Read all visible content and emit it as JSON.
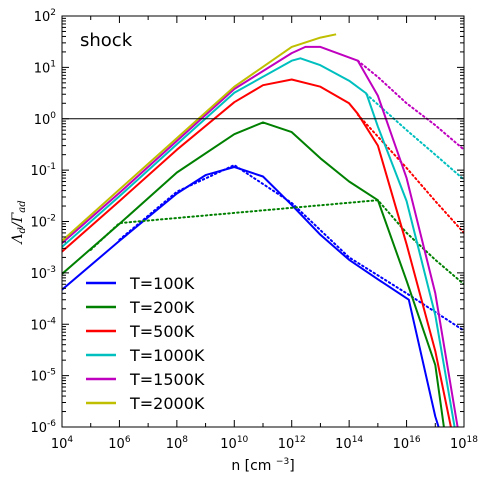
{
  "chart_data": {
    "type": "line",
    "x_scale": "log",
    "y_scale": "log",
    "xlim": [
      10000.0,
      1e+18
    ],
    "ylim": [
      1e-06,
      100
    ],
    "xlabel": {
      "text": "n [cm ",
      "sup": "−3",
      "tail": "]"
    },
    "ylabel": {
      "main": "Λ",
      "sub1": "d",
      "mid": "/Γ",
      "sub2": "ad"
    },
    "x_ticks": [
      {
        "base": "10",
        "exp": "4",
        "value": 10000.0
      },
      {
        "base": "10",
        "exp": "6",
        "value": 1000000.0
      },
      {
        "base": "10",
        "exp": "8",
        "value": 100000000.0
      },
      {
        "base": "10",
        "exp": "10",
        "value": 10000000000.0
      },
      {
        "base": "10",
        "exp": "12",
        "value": 1000000000000.0
      },
      {
        "base": "10",
        "exp": "14",
        "value": 100000000000000.0
      },
      {
        "base": "10",
        "exp": "16",
        "value": 1e+16
      },
      {
        "base": "10",
        "exp": "18",
        "value": 1e+18
      }
    ],
    "y_ticks": [
      {
        "base": "10",
        "exp": "-6",
        "value": 1e-06
      },
      {
        "base": "10",
        "exp": "-5",
        "value": 1e-05
      },
      {
        "base": "10",
        "exp": "-4",
        "value": 0.0001
      },
      {
        "base": "10",
        "exp": "-3",
        "value": 0.001
      },
      {
        "base": "10",
        "exp": "-2",
        "value": 0.01
      },
      {
        "base": "10",
        "exp": "-1",
        "value": 0.1
      },
      {
        "base": "10",
        "exp": "0",
        "value": 1
      },
      {
        "base": "10",
        "exp": "1",
        "value": 10
      },
      {
        "base": "10",
        "exp": "2",
        "value": 100
      }
    ],
    "annotation": "shock",
    "reference_line_y": 1,
    "legend_position": "lower-left",
    "series": [
      {
        "name": "T=100K",
        "color": "#0000ff",
        "solid": [
          [
            10000.0,
            0.00047
          ],
          [
            1000000.0,
            0.0042
          ],
          [
            100000000.0,
            0.035
          ],
          [
            1000000000.0,
            0.08
          ],
          [
            10000000000.0,
            0.115
          ],
          [
            100000000000.0,
            0.075
          ],
          [
            1000000000000.0,
            0.021
          ],
          [
            10000000000000.0,
            0.0055
          ],
          [
            100000000000000.0,
            0.0018
          ],
          [
            1000000000000000.0,
            0.00075
          ],
          [
            1.2e+16,
            0.0003
          ],
          [
            1e+17,
            1.6e-06
          ],
          [
            1.3e+17,
            1e-06
          ]
        ],
        "dotted": [
          [
            1000000.0,
            0.0044
          ],
          [
            100000000.0,
            0.038
          ],
          [
            10000000000.0,
            0.125
          ],
          [
            1000000000000.0,
            0.023
          ],
          [
            100000000000000.0,
            0.002
          ],
          [
            1e+16,
            0.0004
          ],
          [
            1e+18,
            7.5e-05
          ]
        ]
      },
      {
        "name": "T=200K",
        "color": "#008000",
        "solid": [
          [
            10000.0,
            0.00095
          ],
          [
            1000000.0,
            0.009
          ],
          [
            100000000.0,
            0.09
          ],
          [
            10000000000.0,
            0.5
          ],
          [
            100000000000.0,
            0.85
          ],
          [
            1000000000000.0,
            0.55
          ],
          [
            10000000000000.0,
            0.17
          ],
          [
            100000000000000.0,
            0.06
          ],
          [
            1000000000000000.0,
            0.026
          ],
          [
            1e+16,
            0.0007
          ],
          [
            1e+17,
            1.6e-05
          ],
          [
            2e+17,
            1e-06
          ]
        ],
        "dotted": [
          [
            100000.0,
            0.0028
          ],
          [
            1000000.0,
            0.0093
          ],
          [
            1000000000000000.0,
            0.026
          ],
          [
            1e+16,
            0.006
          ],
          [
            1e+17,
            0.0018
          ],
          [
            1e+18,
            0.0006
          ]
        ]
      },
      {
        "name": "T=500K",
        "color": "#ff0000",
        "solid": [
          [
            10000.0,
            0.0026
          ],
          [
            1000000.0,
            0.025
          ],
          [
            100000000.0,
            0.25
          ],
          [
            10000000000.0,
            2.1
          ],
          [
            100000000000.0,
            4.5
          ],
          [
            1000000000000.0,
            5.8
          ],
          [
            10000000000000.0,
            4.2
          ],
          [
            100000000000000.0,
            2.0
          ],
          [
            200000000000000.0,
            1.25
          ],
          [
            1000000000000000.0,
            0.3
          ],
          [
            1e+16,
            0.0036
          ],
          [
            1e+17,
            3e-05
          ],
          [
            3.5e+17,
            1e-06
          ]
        ],
        "dotted": [
          [
            200000000000000.0,
            1.2
          ],
          [
            1000000000000000.0,
            0.45
          ],
          [
            1e+16,
            0.11
          ],
          [
            1e+17,
            0.025
          ],
          [
            1e+18,
            0.006
          ]
        ]
      },
      {
        "name": "T=1000K",
        "color": "#00bfbf",
        "solid": [
          [
            10000.0,
            0.0032
          ],
          [
            1000000.0,
            0.031
          ],
          [
            100000000.0,
            0.32
          ],
          [
            10000000000.0,
            3.2
          ],
          [
            1000000000000.0,
            13.5
          ],
          [
            2000000000000.0,
            15
          ],
          [
            10000000000000.0,
            11
          ],
          [
            100000000000000.0,
            5.5
          ],
          [
            400000000000000.0,
            3.1
          ],
          [
            1000000000000000.0,
            0.7
          ],
          [
            1e+16,
            0.025
          ],
          [
            1e+17,
            0.00015
          ],
          [
            4.7e+17,
            1e-06
          ]
        ],
        "dotted": [
          [
            400000000000000.0,
            3.0
          ],
          [
            1e+16,
            0.6
          ],
          [
            1e+17,
            0.2
          ],
          [
            1e+18,
            0.065
          ]
        ]
      },
      {
        "name": "T=1500K",
        "color": "#bf00bf",
        "solid": [
          [
            10000.0,
            0.0038
          ],
          [
            1000000.0,
            0.036
          ],
          [
            100000000.0,
            0.37
          ],
          [
            10000000000.0,
            3.8
          ],
          [
            1000000000000.0,
            19
          ],
          [
            3000000000000.0,
            25
          ],
          [
            10000000000000.0,
            25
          ],
          [
            50000000000000.0,
            18
          ],
          [
            200000000000000.0,
            13.5
          ],
          [
            1000000000000000.0,
            2.8
          ],
          [
            1e+16,
            0.07
          ],
          [
            1e+17,
            0.0004
          ],
          [
            6e+17,
            1e-06
          ]
        ],
        "dotted": [
          [
            200000000000000.0,
            13.5
          ],
          [
            1000000000000000.0,
            6.5
          ],
          [
            1e+16,
            2.0
          ],
          [
            1e+17,
            0.75
          ],
          [
            1e+18,
            0.25
          ]
        ]
      },
      {
        "name": "T=2000K",
        "color": "#bfbf00",
        "solid": [
          [
            10000.0,
            0.0042
          ],
          [
            1000000.0,
            0.042
          ],
          [
            100000000.0,
            0.42
          ],
          [
            10000000000.0,
            4.2
          ],
          [
            1000000000000.0,
            25
          ],
          [
            10000000000000.0,
            38
          ],
          [
            35000000000000.0,
            44
          ]
        ],
        "dotted": []
      }
    ]
  }
}
